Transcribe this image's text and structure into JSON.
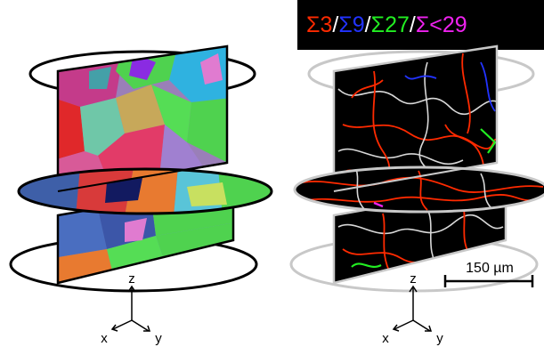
{
  "legend": {
    "items": [
      {
        "text": "Σ3",
        "color": "#ff2a00"
      },
      {
        "text": "Σ9",
        "color": "#2233ff"
      },
      {
        "text": "Σ27",
        "color": "#22ee22"
      },
      {
        "text": "Σ<29",
        "color": "#ee22ee"
      }
    ],
    "separator": " / ",
    "separator_color": "#ffffff"
  },
  "scale_bar": {
    "label": "150 µm"
  },
  "axes": {
    "z": "z",
    "x": "x",
    "y": "y"
  },
  "colors": {
    "grain_map_background": "#000000",
    "outline_left": "#000000",
    "outline_right": "#c8c8c8",
    "random_boundary": "#d8d8d8"
  },
  "panels": [
    {
      "name": "grain-orientation-map"
    },
    {
      "name": "grain-boundary-map"
    }
  ]
}
